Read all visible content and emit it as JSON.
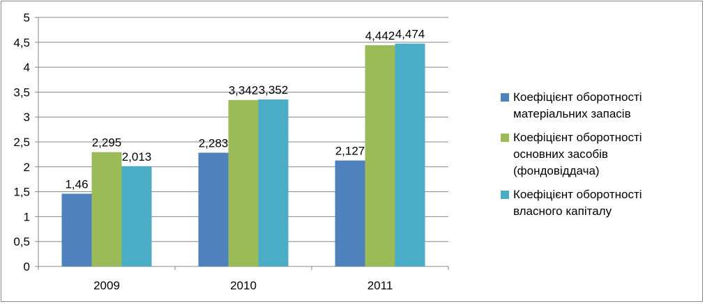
{
  "chart_data": {
    "type": "bar",
    "categories": [
      "2009",
      "2010",
      "2011"
    ],
    "series": [
      {
        "name": "Коефіцієнт оборотності матеріальних запасів",
        "values": [
          1.46,
          2.283,
          2.127
        ],
        "labels": [
          "1,46",
          "2,283",
          "2,127"
        ],
        "color": "#4F81BD"
      },
      {
        "name": "Коефіцієнт оборотності основних засобів (фондовіддача)",
        "values": [
          2.295,
          3.342,
          4.442
        ],
        "labels": [
          "2,295",
          "3,342",
          "4,442"
        ],
        "color": "#9BBB59"
      },
      {
        "name": "Коефіцієнт оборотності власного капіталу",
        "values": [
          2.013,
          3.352,
          4.474
        ],
        "labels": [
          "2,013",
          "3,352",
          "4,474"
        ],
        "color": "#4BACC6"
      }
    ],
    "ylim": [
      0,
      5
    ],
    "yticks": [
      "0",
      "0,5",
      "1",
      "1,5",
      "2",
      "2,5",
      "3",
      "3,5",
      "4",
      "4,5",
      "5"
    ],
    "grid": true,
    "legend_position": "right"
  }
}
